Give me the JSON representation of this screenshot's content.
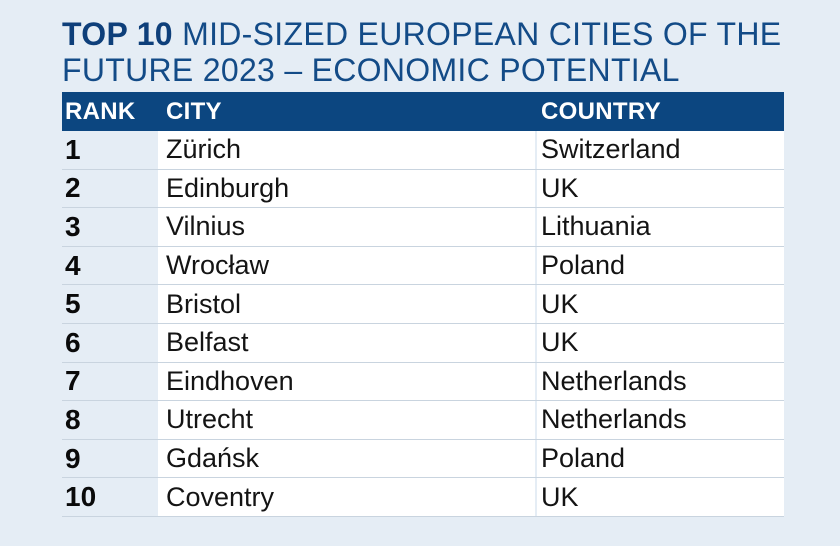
{
  "title": {
    "bold_part": "TOP 10",
    "rest": "MID-SIZED EUROPEAN CITIES OF THE FUTURE 2023 – ECONOMIC POTENTIAL"
  },
  "table": {
    "headers": {
      "rank": "RANK",
      "city": "CITY",
      "country": "COUNTRY"
    },
    "rows": [
      {
        "rank": "1",
        "city": "Zürich",
        "country": "Switzerland"
      },
      {
        "rank": "2",
        "city": "Edinburgh",
        "country": "UK"
      },
      {
        "rank": "3",
        "city": "Vilnius",
        "country": "Lithuania"
      },
      {
        "rank": "4",
        "city": "Wrocław",
        "country": "Poland"
      },
      {
        "rank": "5",
        "city": "Bristol",
        "country": "UK"
      },
      {
        "rank": "6",
        "city": "Belfast",
        "country": "UK"
      },
      {
        "rank": "7",
        "city": "Eindhoven",
        "country": "Netherlands"
      },
      {
        "rank": "8",
        "city": "Utrecht",
        "country": "Netherlands"
      },
      {
        "rank": "9",
        "city": "Gdańsk",
        "country": "Poland"
      },
      {
        "rank": "10",
        "city": "Coventry",
        "country": "UK"
      }
    ]
  },
  "colors": {
    "header_background": "#0c4680",
    "title_text": "#134b87",
    "page_background": "#e5edf5",
    "cell_background": "#ffffff"
  }
}
